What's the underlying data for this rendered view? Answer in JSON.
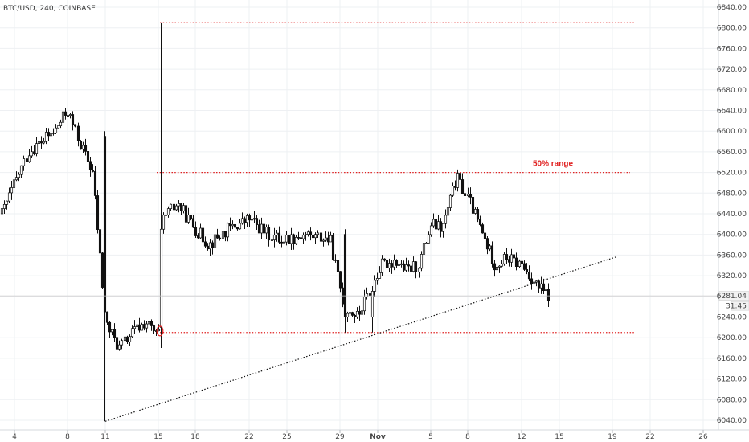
{
  "header": {
    "symbol_label": "BTC/USD, 240, COINBASE"
  },
  "price_scale": {
    "ticks": [
      "6840.00",
      "6800.00",
      "6760.00",
      "6720.00",
      "6680.00",
      "6640.00",
      "6600.00",
      "6560.00",
      "6520.00",
      "6480.00",
      "6440.00",
      "6400.00",
      "6360.00",
      "6320.00",
      "6280.00",
      "6240.00",
      "6200.00",
      "6160.00",
      "6120.00",
      "6080.00",
      "6040.00"
    ],
    "last_price": "6281.04",
    "countdown": "31:45"
  },
  "time_scale": {
    "labels": [
      "4",
      "8",
      "11",
      "15",
      "18",
      "22",
      "25",
      "29",
      "Nov",
      "5",
      "8",
      "12",
      "15",
      "19",
      "22",
      "26"
    ]
  },
  "colors": {
    "accent_red": "#e02020",
    "candle": "#111111",
    "grid": "#eef0f3",
    "axis_text": "#444444"
  },
  "annotations": {
    "range_label": "50% range"
  },
  "chart_data": {
    "type": "candlestick",
    "title": "BTC/USD, 240, COINBASE",
    "ylim": [
      6030,
      6850
    ],
    "x_categories": [
      "4",
      "8",
      "11",
      "15",
      "18",
      "22",
      "25",
      "29",
      "Nov",
      "5",
      "8",
      "12",
      "15",
      "19",
      "22",
      "26"
    ],
    "horizontal_lines": [
      {
        "label": "",
        "y": 6810,
        "style": "dotted",
        "color": "#e02020"
      },
      {
        "label": "50% range",
        "y": 6520,
        "style": "dotted",
        "color": "#e02020"
      },
      {
        "label": "",
        "y": 6210,
        "style": "dotted",
        "color": "#e02020"
      }
    ],
    "trendline": {
      "from": {
        "x": "11",
        "y": 6038
      },
      "to": {
        "x": "19",
        "y": 6357
      },
      "style": "dotted",
      "color": "#111111"
    },
    "last_price": 6281.04,
    "waypoints": [
      {
        "x": "4",
        "y": 6440
      },
      {
        "x": "5",
        "y": 6560
      },
      {
        "x": "7",
        "y": 6600
      },
      {
        "x": "8",
        "y": 6640
      },
      {
        "x": "9",
        "y": 6580
      },
      {
        "x": "10",
        "y": 6520
      },
      {
        "x": "11",
        "y": 6230
      },
      {
        "x": "12",
        "y": 6180
      },
      {
        "x": "13",
        "y": 6210
      },
      {
        "x": "14",
        "y": 6230
      },
      {
        "x": "15",
        "y": 6200
      },
      {
        "x": "16",
        "y": 6430
      },
      {
        "x": "17",
        "y": 6460
      },
      {
        "x": "18",
        "y": 6410
      },
      {
        "x": "19",
        "y": 6380
      },
      {
        "x": "20",
        "y": 6410
      },
      {
        "x": "22",
        "y": 6430
      },
      {
        "x": "23",
        "y": 6400
      },
      {
        "x": "24",
        "y": 6390
      },
      {
        "x": "26",
        "y": 6400
      },
      {
        "x": "28",
        "y": 6390
      },
      {
        "x": "29",
        "y": 6260
      },
      {
        "x": "30",
        "y": 6240
      },
      {
        "x": "31",
        "y": 6300
      },
      {
        "x": "Nov 1",
        "y": 6340
      },
      {
        "x": "Nov 2",
        "y": 6350
      },
      {
        "x": "Nov 3",
        "y": 6330
      },
      {
        "x": "Nov 4",
        "y": 6340
      },
      {
        "x": "Nov 5",
        "y": 6420
      },
      {
        "x": "Nov 6",
        "y": 6410
      },
      {
        "x": "Nov 7",
        "y": 6510
      },
      {
        "x": "Nov 8",
        "y": 6460
      },
      {
        "x": "Nov 9",
        "y": 6400
      },
      {
        "x": "Nov 10",
        "y": 6340
      },
      {
        "x": "Nov 11",
        "y": 6355
      },
      {
        "x": "Nov 12",
        "y": 6340
      },
      {
        "x": "Nov 13",
        "y": 6300
      },
      {
        "x": "Nov 14",
        "y": 6281
      }
    ]
  }
}
